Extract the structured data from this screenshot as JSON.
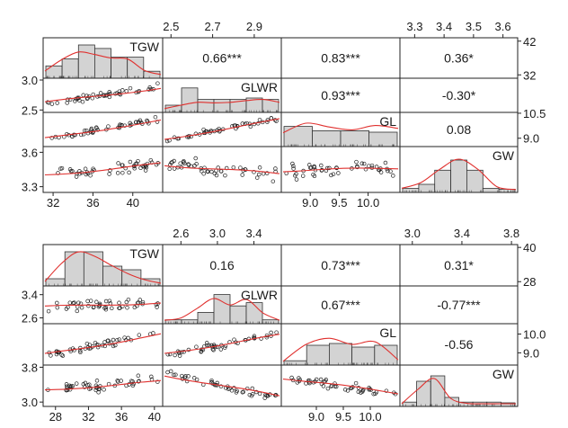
{
  "chart_data": [
    {
      "type": "scatter",
      "variables": [
        "TGW",
        "GLWR",
        "GL",
        "GW"
      ],
      "correlations": [
        {
          "pair": [
            "TGW",
            "GLWR"
          ],
          "text": "0.66***"
        },
        {
          "pair": [
            "TGW",
            "GL"
          ],
          "text": "0.83***"
        },
        {
          "pair": [
            "TGW",
            "GW"
          ],
          "text": "0.36*"
        },
        {
          "pair": [
            "GLWR",
            "GL"
          ],
          "text": "0.93***"
        },
        {
          "pair": [
            "GLWR",
            "GW"
          ],
          "text": "-0.30*"
        },
        {
          "pair": [
            "GL",
            "GW"
          ],
          "text": "0.08"
        }
      ],
      "axis_ticks": {
        "TGW": [
          "32",
          "36",
          "40"
        ],
        "GLWR": [
          "2.5",
          "2.7",
          "2.9"
        ],
        "GL": [
          "9.0",
          "9.5",
          "10.0"
        ],
        "GW": [
          "3.3",
          "3.4",
          "3.5",
          "3.6"
        ]
      },
      "left_ticks": {
        "GLWR": [
          "3.0",
          "2.5"
        ],
        "GW": [
          "3.6",
          "3.3"
        ]
      },
      "right_ticks": {
        "TGW": [
          "42",
          "32"
        ],
        "GL": [
          "10.5",
          "9.0"
        ]
      },
      "ranges": {
        "TGW": [
          31,
          43
        ],
        "GLWR": [
          2.46,
          3.03
        ],
        "GL": [
          8.5,
          10.55
        ],
        "GW": [
          3.25,
          3.65
        ]
      },
      "tick_values": {
        "TGW": [
          32,
          36,
          40
        ],
        "GLWR": [
          2.5,
          2.7,
          2.9
        ],
        "GL": [
          9.0,
          9.5,
          10.0
        ],
        "GW": [
          3.3,
          3.4,
          3.5,
          3.6
        ]
      },
      "right_tick_values": {
        "TGW": [
          42,
          32
        ],
        "GL": [
          10.5,
          9.0
        ]
      },
      "left_tick_values": {
        "GLWR": [
          3.0,
          2.5
        ],
        "GW": [
          3.6,
          3.3
        ]
      },
      "histograms": {
        "TGW": [
          0.35,
          0.55,
          0.95,
          0.85,
          0.6,
          0.6,
          0.2
        ],
        "GLWR": [
          0.25,
          0.85,
          0.45,
          0.45,
          0.45,
          0.5,
          0.45
        ],
        "GL": [
          0.7,
          0.55,
          0.55,
          0.5
        ],
        "GW": [
          0.1,
          0.2,
          0.55,
          0.8,
          0.55,
          0.1,
          0.08
        ]
      },
      "smooth_y": {
        "TGW": [
          0.18,
          0.5,
          0.72,
          0.65,
          0.55,
          0.52,
          0.2,
          0.08
        ],
        "GLWR": [
          0.1,
          0.22,
          0.32,
          0.3,
          0.32,
          0.38,
          0.42,
          0.32
        ],
        "GL": [
          0.45,
          0.78,
          0.65,
          0.55,
          0.7,
          0.6
        ],
        "GW": [
          0.08,
          0.22,
          0.55,
          0.8,
          0.55,
          0.12,
          0.05
        ]
      }
    },
    {
      "type": "scatter",
      "variables": [
        "TGW",
        "GLWR",
        "GL",
        "GW"
      ],
      "correlations": [
        {
          "pair": [
            "TGW",
            "GLWR"
          ],
          "text": "0.16"
        },
        {
          "pair": [
            "TGW",
            "GL"
          ],
          "text": "0.73***"
        },
        {
          "pair": [
            "TGW",
            "GW"
          ],
          "text": "0.31*"
        },
        {
          "pair": [
            "GLWR",
            "GL"
          ],
          "text": "0.67***"
        },
        {
          "pair": [
            "GLWR",
            "GW"
          ],
          "text": "-0.77***"
        },
        {
          "pair": [
            "GL",
            "GW"
          ],
          "text": "-0.56"
        }
      ],
      "axis_ticks": {
        "TGW": [
          "28",
          "32",
          "36",
          "40"
        ],
        "GLWR": [
          "2.6",
          "3.0",
          "3.4"
        ],
        "GL": [
          "9.0",
          "9.5",
          "10.0"
        ],
        "GW": [
          "3.0",
          "3.4",
          "3.8"
        ]
      },
      "left_ticks": {
        "GLWR": [
          "3.4",
          "2.6"
        ],
        "GW": [
          "3.8",
          "3.0"
        ]
      },
      "right_ticks": {
        "TGW": [
          "40",
          "28"
        ],
        "GL": [
          "10.0",
          "9.0"
        ]
      },
      "ranges": {
        "TGW": [
          26.5,
          41
        ],
        "GLWR": [
          2.4,
          3.7
        ],
        "GL": [
          8.35,
          10.55
        ],
        "GW": [
          2.9,
          3.85
        ]
      },
      "tick_values": {
        "TGW": [
          28,
          32,
          36,
          40
        ],
        "GLWR": [
          2.6,
          3.0,
          3.4
        ],
        "GL": [
          9.0,
          9.5,
          10.0
        ],
        "GW": [
          3.0,
          3.4,
          3.8
        ]
      },
      "right_tick_values": {
        "TGW": [
          40,
          28
        ],
        "GL": [
          10.0,
          9.0
        ]
      },
      "left_tick_values": {
        "GLWR": [
          3.4,
          2.6
        ],
        "GW": [
          3.8,
          3.0
        ]
      },
      "histograms": {
        "TGW": [
          0.2,
          0.95,
          0.95,
          0.55,
          0.45,
          0.2
        ],
        "GLWR": [
          0.12,
          0.12,
          0.35,
          0.9,
          0.55,
          0.65,
          0.12
        ],
        "GL": [
          0.12,
          0.55,
          0.6,
          0.5,
          0.55
        ],
        "GW": [
          0.12,
          0.7,
          0.85,
          0.25,
          0.12,
          0.12,
          0.12,
          0.1
        ]
      },
      "smooth_y": {
        "TGW": [
          0.1,
          0.6,
          0.92,
          0.8,
          0.55,
          0.32,
          0.15,
          0.05
        ],
        "GLWR": [
          0.08,
          0.15,
          0.45,
          0.75,
          0.55,
          0.72,
          0.3,
          0.08
        ],
        "GL": [
          0.08,
          0.55,
          0.72,
          0.55,
          0.62,
          0.12
        ],
        "GW": [
          0.05,
          0.45,
          0.75,
          0.2,
          0.06,
          0.05,
          0.05,
          0.05
        ]
      }
    }
  ],
  "colors": {
    "hist_fill": "#d3d3d3",
    "smooth_line": "#e0312f",
    "points": "#222222",
    "border": "#222222"
  }
}
